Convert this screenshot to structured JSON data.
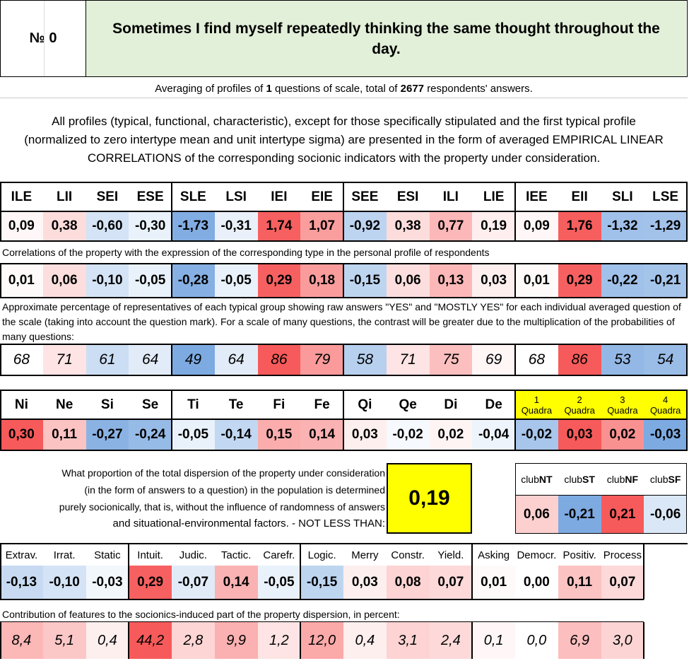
{
  "header": {
    "number_label": "№ 0",
    "question": "Sometimes I find myself repeatedly thinking the same thought throughout the day."
  },
  "intro": {
    "averaging_pre": "Averaging of profiles of ",
    "averaging_count": "1",
    "averaging_mid": " questions of scale, total of ",
    "averaging_total": "2677",
    "averaging_post": " respondents' answers.",
    "description": "All profiles (typical, functional, characteristic), except for those specifically stipulated and the first typical profile (normalized to zero intertype mean and unit intertype sigma) are presented in the form of averaged EMPIRICAL LINEAR CORRELATIONS of the corresponding socionic indicators with the property under consideration."
  },
  "types": {
    "headers": [
      "ILE",
      "LII",
      "SEI",
      "ESE",
      "SLE",
      "LSI",
      "IEI",
      "EIE",
      "SEE",
      "ESI",
      "ILI",
      "LIE",
      "IEE",
      "EII",
      "SLI",
      "LSE"
    ],
    "profile": [
      "0,09",
      "0,38",
      "-0,60",
      "-0,30",
      "-1,73",
      "-0,31",
      "1,74",
      "1,07",
      "-0,92",
      "0,38",
      "0,77",
      "0,19",
      "0,09",
      "1,76",
      "-1,32",
      "-1,29"
    ],
    "correlation_note": "Correlations of the property with the expression of the corresponding type in the personal profile of respondents",
    "correlations": [
      "0,01",
      "0,06",
      "-0,10",
      "-0,05",
      "-0,28",
      "-0,05",
      "0,29",
      "0,18",
      "-0,15",
      "0,06",
      "0,13",
      "0,03",
      "0,01",
      "0,29",
      "-0,22",
      "-0,21"
    ],
    "percentage_note": "Approximate percentage of representatives of each typical group showing raw answers \"YES\" and \"MOSTLY YES\" for each individual averaged question of the scale (taking into account the question mark). For a scale of many questions, the contrast will be greater due to the multiplication of the probabilities of many questions:",
    "percentages": [
      "68",
      "71",
      "61",
      "64",
      "49",
      "64",
      "86",
      "79",
      "58",
      "71",
      "75",
      "69",
      "68",
      "86",
      "53",
      "54"
    ]
  },
  "functions": {
    "headers": [
      "Ni",
      "Ne",
      "Si",
      "Se",
      "Ti",
      "Te",
      "Fi",
      "Fe",
      "Qi",
      "Qe",
      "Di",
      "De"
    ],
    "values": [
      "0,30",
      "0,11",
      "-0,27",
      "-0,24",
      "-0,05",
      "-0,14",
      "0,15",
      "0,14",
      "0,03",
      "-0,02",
      "0,02",
      "-0,04"
    ],
    "quadras": [
      {
        "num": "1",
        "label": "Quadra",
        "value": "-0,02"
      },
      {
        "num": "2",
        "label": "Quadra",
        "value": "0,03"
      },
      {
        "num": "3",
        "label": "Quadra",
        "value": "0,02"
      },
      {
        "num": "4",
        "label": "Quadra",
        "value": "-0,03"
      }
    ]
  },
  "dispersion": {
    "line1": "What proportion of the total dispersion of the property under consideration",
    "line2": "(in the form of answers to a question) in the population is determined",
    "line3": "purely socionically, that is, without the influence of randomness of answers",
    "line4": "and situational-environmental factors. - NOT LESS THAN:",
    "value": "0,19"
  },
  "clubs": [
    {
      "prefix": "club",
      "suffix": "NT",
      "value": "0,06"
    },
    {
      "prefix": "club",
      "suffix": "ST",
      "value": "-0,21"
    },
    {
      "prefix": "club",
      "suffix": "NF",
      "value": "0,21"
    },
    {
      "prefix": "club",
      "suffix": "SF",
      "value": "-0,06"
    }
  ],
  "features": {
    "headers": [
      "Extrav.",
      "Irrat.",
      "Static",
      "Intuit.",
      "Judic.",
      "Tactic.",
      "Carefr.",
      "Logic.",
      "Merry",
      "Constr.",
      "Yield.",
      "Asking",
      "Democr.",
      "Positiv.",
      "Process"
    ],
    "values": [
      "-0,13",
      "-0,10",
      "-0,03",
      "0,29",
      "-0,07",
      "0,14",
      "-0,05",
      "-0,15",
      "0,03",
      "0,08",
      "0,07",
      "0,01",
      "0,00",
      "0,11",
      "0,07"
    ],
    "contribution_note": "Contribution of features to the sociоnics-induced part of the property dispersion, in percent:",
    "contributions": [
      "8,4",
      "5,1",
      "0,4",
      "44,2",
      "2,8",
      "9,9",
      "1,2",
      "12,0",
      "0,4",
      "3,1",
      "2,4",
      "0,1",
      "0,0",
      "6,9",
      "3,0"
    ]
  },
  "colors": {
    "header_bg": "#e2efd9",
    "yellow": "#ffff00"
  }
}
